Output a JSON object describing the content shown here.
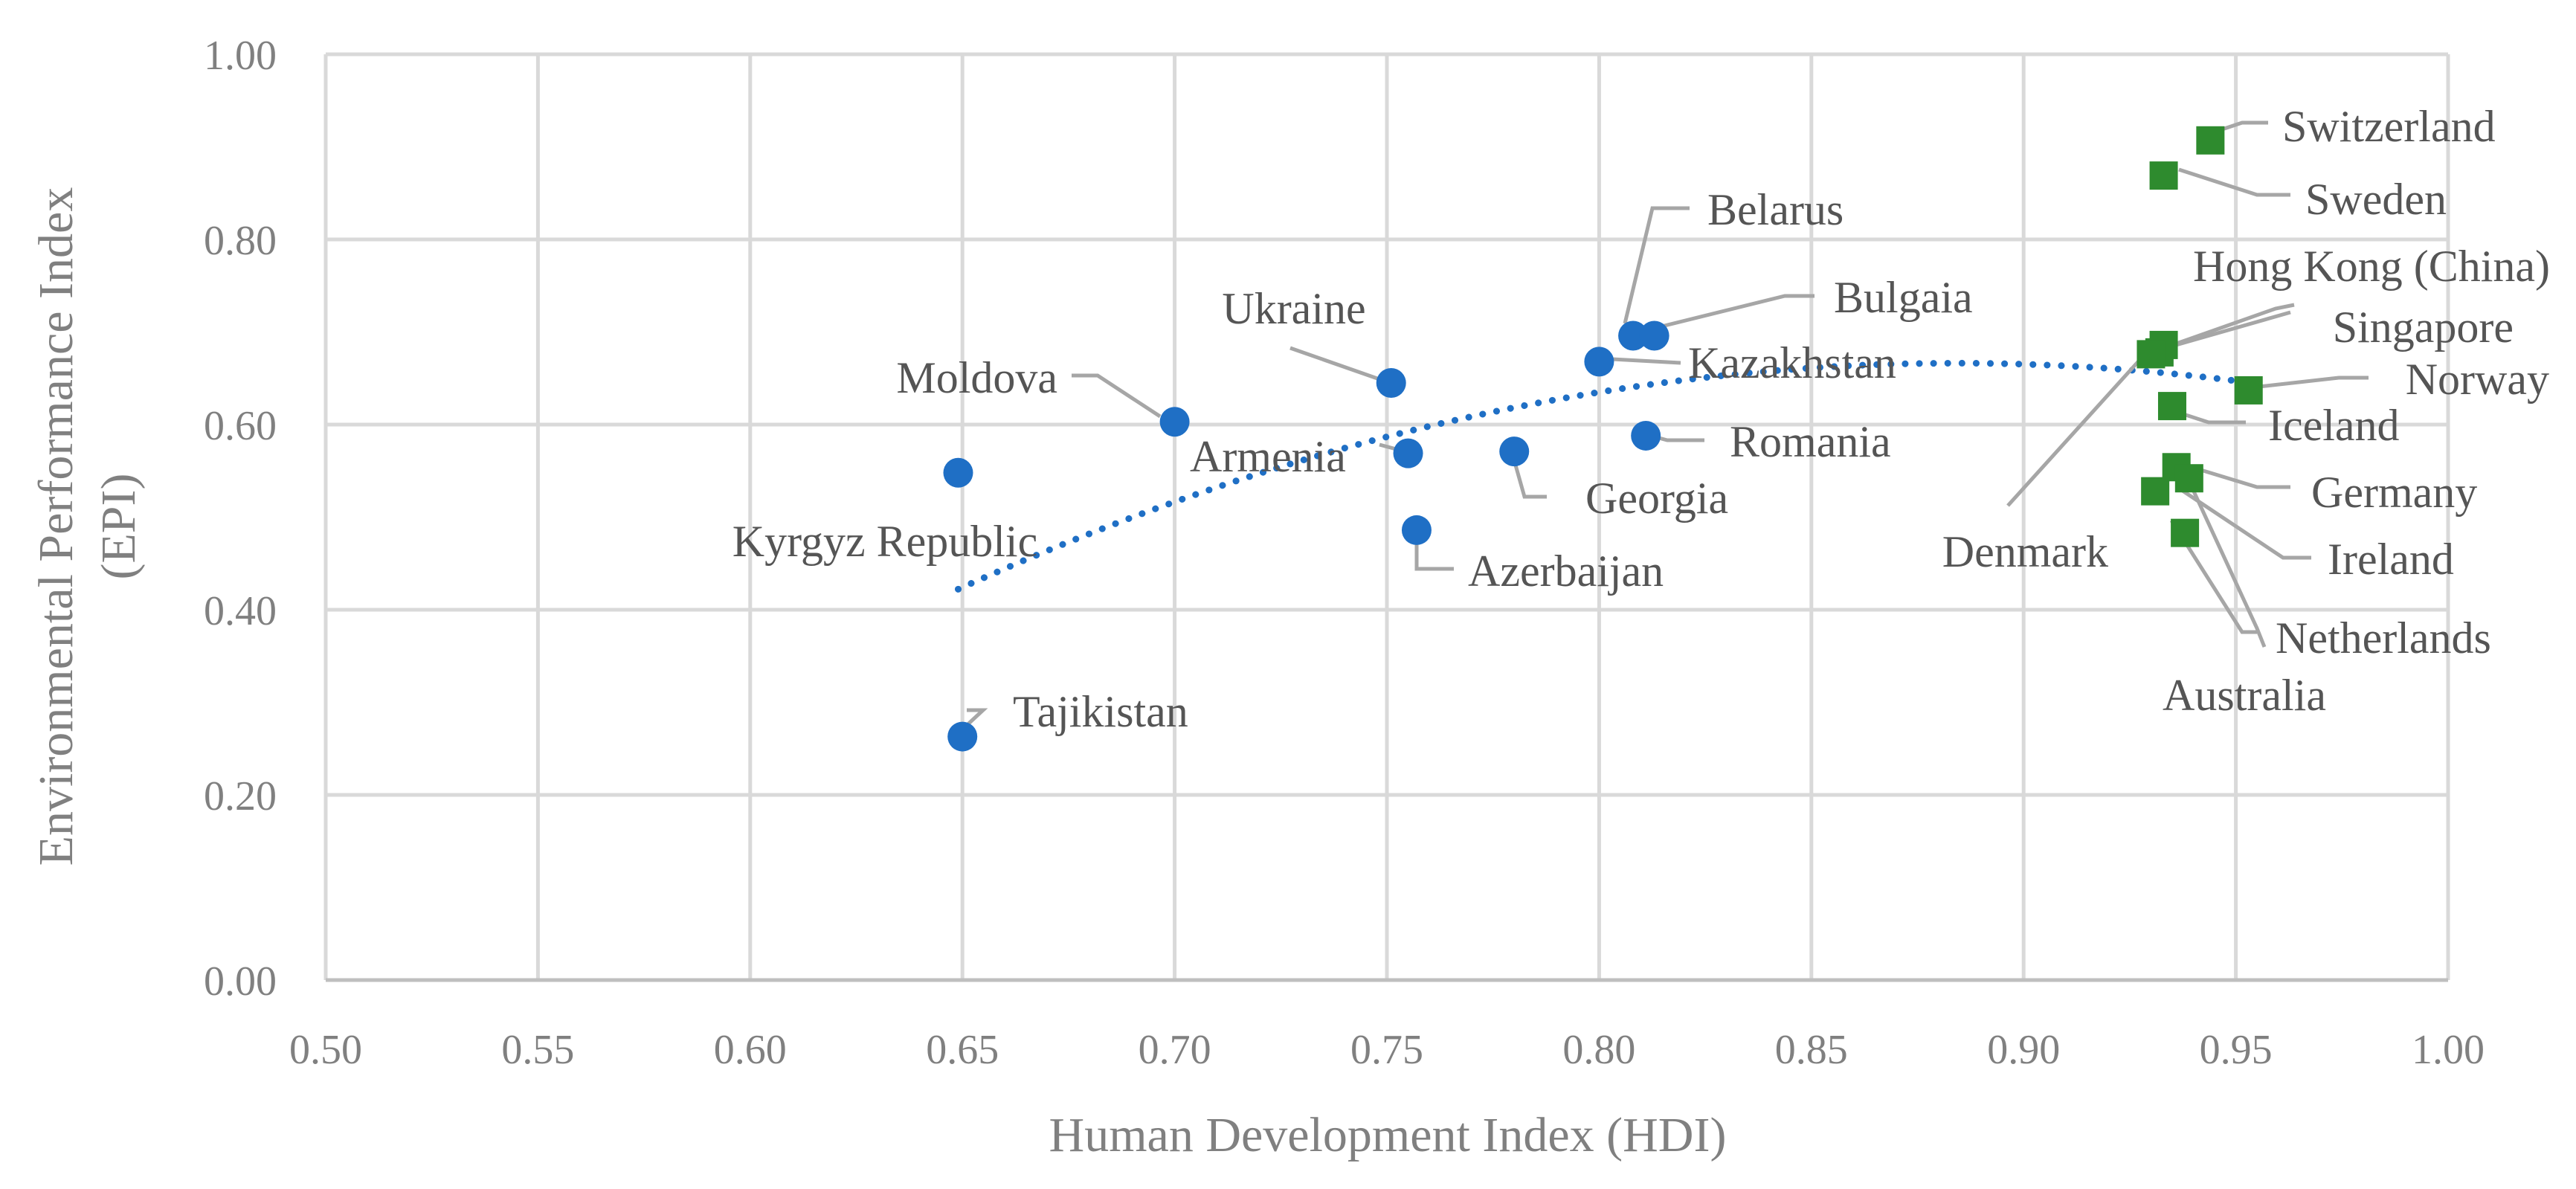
{
  "chart_data": {
    "type": "scatter",
    "xlabel": "Human Development Index (HDI)",
    "ylabel": "Environmental Performance Index (EPI)",
    "xlim": [
      0.5,
      1.0
    ],
    "ylim": [
      0.0,
      1.0
    ],
    "x_ticks": [
      "0.50",
      "0.55",
      "0.60",
      "0.65",
      "0.70",
      "0.75",
      "0.80",
      "0.85",
      "0.90",
      "0.95",
      "1.00"
    ],
    "y_ticks": [
      "0.00",
      "0.20",
      "0.40",
      "0.60",
      "0.80",
      "1.00"
    ],
    "grid": true,
    "colors": {
      "circle_series": "#1f6fc5",
      "square_series": "#2e8b2e",
      "trendline": "#1f6fc5"
    },
    "series": [
      {
        "marker": "circle",
        "points": [
          {
            "label": "Kyrgyz Republic",
            "x": 0.649,
            "y": 0.548
          },
          {
            "label": "Tajikistan",
            "x": 0.65,
            "y": 0.263
          },
          {
            "label": "Moldova",
            "x": 0.7,
            "y": 0.603
          },
          {
            "label": "Ukraine",
            "x": 0.751,
            "y": 0.645
          },
          {
            "label": "Armenia",
            "x": 0.755,
            "y": 0.569
          },
          {
            "label": "Azerbaijan",
            "x": 0.757,
            "y": 0.486
          },
          {
            "label": "Georgia",
            "x": 0.78,
            "y": 0.571
          },
          {
            "label": "Kazakhstan",
            "x": 0.8,
            "y": 0.668
          },
          {
            "label": "Belarus",
            "x": 0.808,
            "y": 0.696
          },
          {
            "label": "Bulgaia",
            "x": 0.813,
            "y": 0.696
          },
          {
            "label": "Romania",
            "x": 0.811,
            "y": 0.588
          }
        ]
      },
      {
        "marker": "square",
        "points": [
          {
            "label": "Switzerland",
            "x": 0.944,
            "y": 0.907
          },
          {
            "label": "Sweden",
            "x": 0.933,
            "y": 0.869
          },
          {
            "label": "Hong Kong (China)",
            "x": 0.933,
            "y": 0.686
          },
          {
            "label": "Singapore",
            "x": 0.932,
            "y": 0.678
          },
          {
            "label": "Denmark",
            "x": 0.93,
            "y": 0.676
          },
          {
            "label": "Norway",
            "x": 0.953,
            "y": 0.637
          },
          {
            "label": "Iceland",
            "x": 0.935,
            "y": 0.62
          },
          {
            "label": "Germany",
            "x": 0.936,
            "y": 0.554
          },
          {
            "label": "Ireland",
            "x": 0.938,
            "y": 0.483
          },
          {
            "label": "Netherlands",
            "x": 0.931,
            "y": 0.528
          },
          {
            "label": "Australia",
            "x": 0.939,
            "y": 0.542
          }
        ]
      }
    ],
    "trendline": {
      "type": "polynomial",
      "x_range": [
        0.649,
        0.953
      ]
    }
  }
}
